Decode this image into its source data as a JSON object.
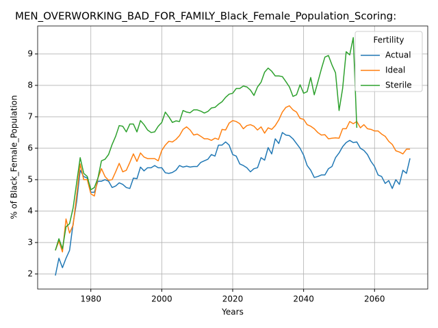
{
  "chart_data": {
    "type": "line",
    "title": "MEN_OVERWORKING_BAD_FOR_FAMILY_Black_Female_Population_Scoring:",
    "x_label": "Years",
    "y_label": "% of Black_Female_Population",
    "legend_title": "Fertility",
    "legend": "upper right",
    "grid": true,
    "x": [
      1970,
      1971,
      1972,
      1973,
      1974,
      1975,
      1976,
      1977,
      1978,
      1979,
      1980,
      1981,
      1982,
      1983,
      1984,
      1985,
      1986,
      1987,
      1988,
      1989,
      1990,
      1991,
      1992,
      1993,
      1994,
      1995,
      1996,
      1997,
      1998,
      1999,
      2000,
      2001,
      2002,
      2003,
      2004,
      2005,
      2006,
      2007,
      2008,
      2009,
      2010,
      2011,
      2012,
      2013,
      2014,
      2015,
      2016,
      2017,
      2018,
      2019,
      2020,
      2021,
      2022,
      2023,
      2024,
      2025,
      2026,
      2027,
      2028,
      2029,
      2030,
      2031,
      2032,
      2033,
      2034,
      2035,
      2036,
      2037,
      2038,
      2039,
      2040,
      2041,
      2042,
      2043,
      2044,
      2045,
      2046,
      2047,
      2048,
      2049,
      2050,
      2051,
      2052,
      2053,
      2054,
      2055,
      2056,
      2057,
      2058,
      2059,
      2060,
      2061,
      2062,
      2063,
      2064,
      2065,
      2066,
      2067,
      2068,
      2069,
      2070
    ],
    "series": [
      {
        "name": "Actual",
        "color": "#1f77b4",
        "values": [
          1.95,
          2.5,
          2.2,
          2.5,
          2.75,
          3.6,
          4.3,
          5.3,
          5.1,
          5.05,
          4.6,
          4.6,
          4.95,
          4.95,
          5.0,
          4.95,
          4.75,
          4.8,
          4.9,
          4.85,
          4.75,
          4.72,
          5.05,
          5.03,
          5.4,
          5.28,
          5.38,
          5.38,
          5.45,
          5.38,
          5.38,
          5.22,
          5.2,
          5.23,
          5.3,
          5.45,
          5.4,
          5.43,
          5.4,
          5.42,
          5.42,
          5.55,
          5.6,
          5.65,
          5.8,
          5.75,
          6.1,
          6.1,
          6.2,
          6.1,
          5.8,
          5.75,
          5.5,
          5.45,
          5.38,
          5.25,
          5.35,
          5.38,
          5.7,
          5.62,
          6.02,
          5.82,
          6.3,
          6.15,
          6.5,
          6.42,
          6.4,
          6.3,
          6.15,
          6.0,
          5.78,
          5.45,
          5.3,
          5.07,
          5.1,
          5.15,
          5.15,
          5.35,
          5.42,
          5.7,
          5.85,
          6.05,
          6.18,
          6.25,
          6.18,
          6.2,
          6.0,
          5.93,
          5.8,
          5.58,
          5.42,
          5.15,
          5.1,
          4.88,
          4.97,
          4.72,
          5.0,
          4.85,
          5.3,
          5.2,
          5.68
        ]
      },
      {
        "name": "Ideal",
        "color": "#ff7f0e",
        "values": [
          2.75,
          3.05,
          2.7,
          3.75,
          3.3,
          3.55,
          4.5,
          5.5,
          5.0,
          5.0,
          4.55,
          4.48,
          5.05,
          5.35,
          5.1,
          4.98,
          5.0,
          5.25,
          5.52,
          5.25,
          5.3,
          5.55,
          5.82,
          5.58,
          5.85,
          5.72,
          5.67,
          5.67,
          5.67,
          5.6,
          5.93,
          6.1,
          6.22,
          6.2,
          6.28,
          6.4,
          6.6,
          6.68,
          6.58,
          6.42,
          6.45,
          6.38,
          6.3,
          6.3,
          6.25,
          6.32,
          6.28,
          6.6,
          6.58,
          6.8,
          6.88,
          6.85,
          6.78,
          6.62,
          6.72,
          6.75,
          6.7,
          6.58,
          6.68,
          6.48,
          6.65,
          6.6,
          6.72,
          6.9,
          7.15,
          7.3,
          7.35,
          7.22,
          7.15,
          6.95,
          6.92,
          6.75,
          6.7,
          6.62,
          6.5,
          6.42,
          6.43,
          6.3,
          6.32,
          6.33,
          6.32,
          6.62,
          6.62,
          6.85,
          6.78,
          6.85,
          6.65,
          6.75,
          6.62,
          6.6,
          6.55,
          6.55,
          6.45,
          6.38,
          6.22,
          6.12,
          5.92,
          5.88,
          5.82,
          5.97,
          5.97
        ]
      },
      {
        "name": "Sterile",
        "color": "#2ca02c",
        "values": [
          2.75,
          3.12,
          2.8,
          3.5,
          3.6,
          4.1,
          4.9,
          5.7,
          5.2,
          5.1,
          4.68,
          4.75,
          5.05,
          5.6,
          5.65,
          5.8,
          6.12,
          6.38,
          6.72,
          6.7,
          6.52,
          6.77,
          6.77,
          6.52,
          6.88,
          6.75,
          6.58,
          6.5,
          6.52,
          6.7,
          6.82,
          7.15,
          7.0,
          6.82,
          6.87,
          6.85,
          7.2,
          7.15,
          7.13,
          7.22,
          7.22,
          7.18,
          7.12,
          7.17,
          7.28,
          7.3,
          7.4,
          7.48,
          7.62,
          7.72,
          7.75,
          7.9,
          7.9,
          7.98,
          7.95,
          7.85,
          7.68,
          7.95,
          8.1,
          8.42,
          8.55,
          8.45,
          8.3,
          8.3,
          8.28,
          8.12,
          7.95,
          7.65,
          7.7,
          8.02,
          7.75,
          7.8,
          8.25,
          7.7,
          8.1,
          8.52,
          8.9,
          8.95,
          8.65,
          8.4,
          7.2,
          7.9,
          9.07,
          8.97,
          9.52,
          6.65,
          null,
          null,
          null,
          null,
          null,
          null,
          null,
          null,
          null,
          null,
          null,
          null,
          null,
          null,
          null
        ]
      }
    ],
    "xlim": [
      1965,
      2075
    ],
    "xticks": [
      1980,
      2000,
      2020,
      2040,
      2060
    ],
    "ylim": [
      1.52,
      9.89
    ],
    "yticks": [
      2,
      3,
      4,
      5,
      6,
      7,
      8,
      9
    ]
  }
}
